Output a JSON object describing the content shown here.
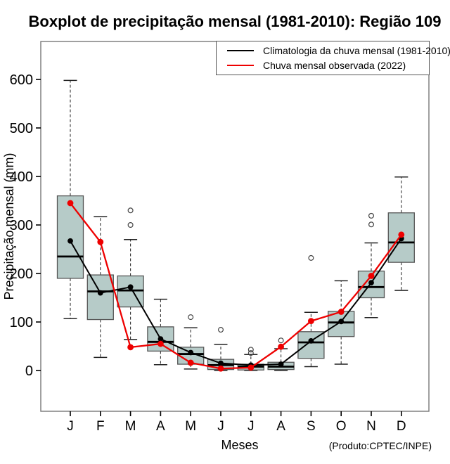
{
  "title": "Boxplot de precipitação mensal (1981-2010): Região 109",
  "credit": "(Produto:CPTEC/INPE)",
  "legend": {
    "items": [
      {
        "label": "Climatologia da chuva mensal (1981-2010)",
        "color": "#000000"
      },
      {
        "label": "Chuva mensal observada (2022)",
        "color": "#ee0000"
      }
    ]
  },
  "chart_data": {
    "type": "boxplot-with-lines",
    "title": "Boxplot de precipitação mensal (1981-2010): Região 109",
    "xlabel": "Meses",
    "ylabel": "Precipitação mensal (mm)",
    "categories": [
      "J",
      "F",
      "M",
      "A",
      "M",
      "J",
      "J",
      "A",
      "S",
      "O",
      "N",
      "D"
    ],
    "ylim": [
      0,
      600
    ],
    "yticks": [
      0,
      100,
      200,
      300,
      400,
      500,
      600
    ],
    "grid": false,
    "legend_position": "top-right",
    "box_fill": "#b6cbc8",
    "box_stroke": "#555555",
    "boxes": [
      {
        "low": 107,
        "q1": 190,
        "median": 235,
        "q3": 360,
        "high": 598,
        "outliers": []
      },
      {
        "low": 27,
        "q1": 105,
        "median": 163,
        "q3": 197,
        "high": 317,
        "outliers": []
      },
      {
        "low": 64,
        "q1": 131,
        "median": 165,
        "q3": 195,
        "high": 270,
        "outliers": [
          300,
          330
        ]
      },
      {
        "low": 12,
        "q1": 40,
        "median": 59,
        "q3": 90,
        "high": 147,
        "outliers": []
      },
      {
        "low": 3,
        "q1": 13,
        "median": 34,
        "q3": 48,
        "high": 88,
        "outliers": [
          110
        ]
      },
      {
        "low": 0,
        "q1": 2,
        "median": 11,
        "q3": 23,
        "high": 54,
        "outliers": [
          84
        ]
      },
      {
        "low": 0,
        "q1": 1,
        "median": 8,
        "q3": 13,
        "high": 33,
        "outliers": [
          36,
          43
        ]
      },
      {
        "low": 0,
        "q1": 2,
        "median": 8,
        "q3": 17,
        "high": 45,
        "outliers": [
          62
        ]
      },
      {
        "low": 8,
        "q1": 25,
        "median": 58,
        "q3": 80,
        "high": 120,
        "outliers": [
          232
        ]
      },
      {
        "low": 13,
        "q1": 70,
        "median": 99,
        "q3": 122,
        "high": 185,
        "outliers": []
      },
      {
        "low": 109,
        "q1": 150,
        "median": 172,
        "q3": 205,
        "high": 263,
        "outliers": [
          301,
          319
        ]
      },
      {
        "low": 165,
        "q1": 223,
        "median": 264,
        "q3": 325,
        "high": 399,
        "outliers": []
      }
    ],
    "series": [
      {
        "name": "Climatologia da chuva mensal (1981-2010)",
        "color": "#000000",
        "values": [
          267,
          160,
          172,
          65,
          37,
          15,
          11,
          13,
          61,
          101,
          181,
          272
        ]
      },
      {
        "name": "Chuva mensal observada (2022)",
        "color": "#ee0000",
        "values": [
          345,
          265,
          48,
          55,
          16,
          4,
          6,
          49,
          102,
          121,
          195,
          280
        ]
      }
    ]
  }
}
